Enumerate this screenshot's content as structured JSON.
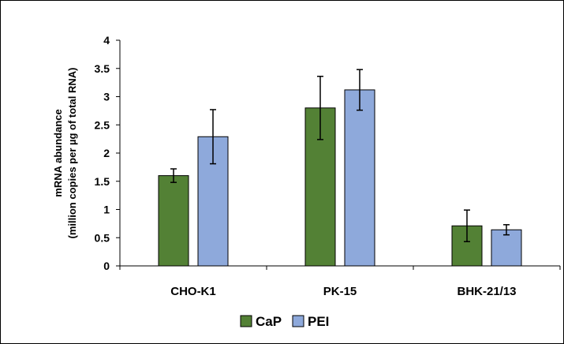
{
  "chart_data": {
    "type": "bar",
    "categories": [
      "CHO-K1",
      "PK-15",
      "BHK-21/13"
    ],
    "series": [
      {
        "name": "CaP",
        "color": "#538135",
        "values": [
          1.6,
          2.8,
          0.71
        ],
        "errors": [
          0.12,
          0.56,
          0.28
        ]
      },
      {
        "name": "PEI",
        "color": "#8EA9DB",
        "values": [
          2.29,
          3.12,
          0.64
        ],
        "errors": [
          0.48,
          0.36,
          0.09
        ]
      }
    ],
    "ylabel_line1": "mRNA abundance",
    "ylabel_line2": "(million copies per µg of total RNA)",
    "ylim": [
      0,
      4
    ],
    "yticks": [
      "0",
      "0.5",
      "1",
      "1.5",
      "2",
      "2.5",
      "3",
      "3.5",
      "4"
    ],
    "grid": false,
    "legend_position": "bottom"
  }
}
